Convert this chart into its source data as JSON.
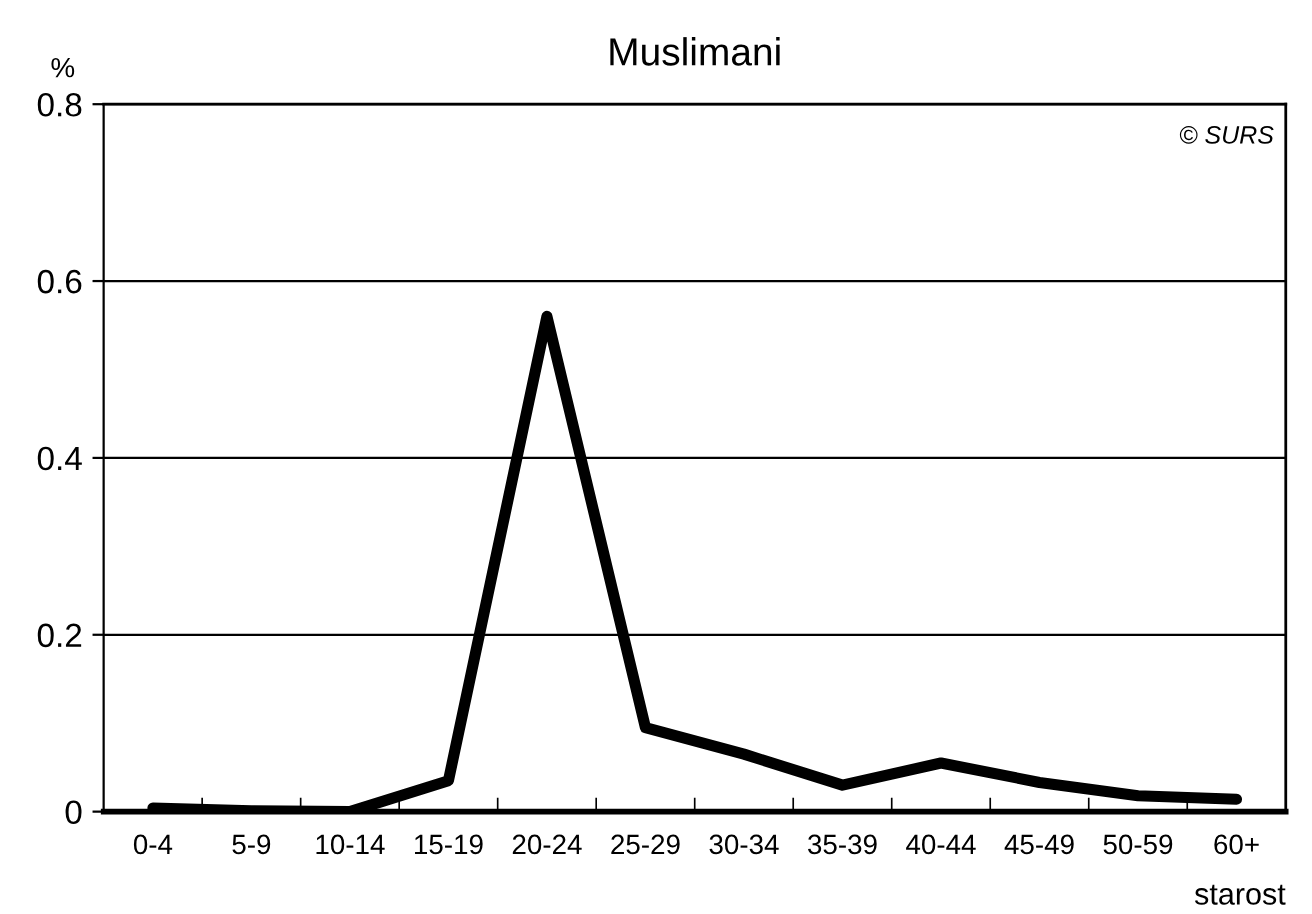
{
  "chart_data": {
    "type": "line",
    "title": "Muslimani",
    "ylabel": "%",
    "xlabel": "starost",
    "annotations": [
      "© SURS"
    ],
    "categories": [
      "0-4",
      "5-9",
      "10-14",
      "15-19",
      "20-24",
      "25-29",
      "30-34",
      "35-39",
      "40-44",
      "45-49",
      "50-59",
      "60+"
    ],
    "series": [
      {
        "color": "#000000",
        "values": [
          0.004,
          0.001,
          0,
          0.035,
          0.56,
          0.095,
          0.065,
          0.03,
          0.055,
          0.033,
          0.018,
          0.014
        ]
      }
    ],
    "ylim": [
      0,
      0.8
    ],
    "yticks": [
      {
        "value": 0,
        "label": "0"
      },
      0.2,
      0.4,
      0.6,
      0.8
    ],
    "grid": "y",
    "legend": false,
    "marker": "none",
    "line_style": "solid"
  }
}
